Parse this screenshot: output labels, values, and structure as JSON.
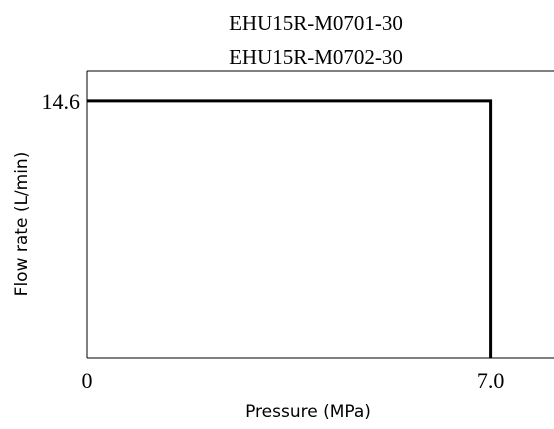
{
  "chart_data": {
    "type": "line",
    "title": [
      "EHU15R-M0701-30",
      "EHU15R-M0702-30"
    ],
    "xlabel": "Pressure (MPa)",
    "ylabel": "Flow rate (L/min)",
    "x_ticks": [
      {
        "value": 0,
        "label": "0"
      },
      {
        "value": 7.0,
        "label": "7.0"
      }
    ],
    "y_ticks": [
      {
        "value": 14.6,
        "label": "14.6"
      }
    ],
    "xlim": [
      0,
      8.1
    ],
    "ylim": [
      0,
      16.3
    ],
    "grid": false,
    "series": [
      {
        "x": [
          0,
          7.0,
          7.0
        ],
        "y": [
          14.6,
          14.6,
          0
        ],
        "color": "#000000"
      }
    ]
  }
}
